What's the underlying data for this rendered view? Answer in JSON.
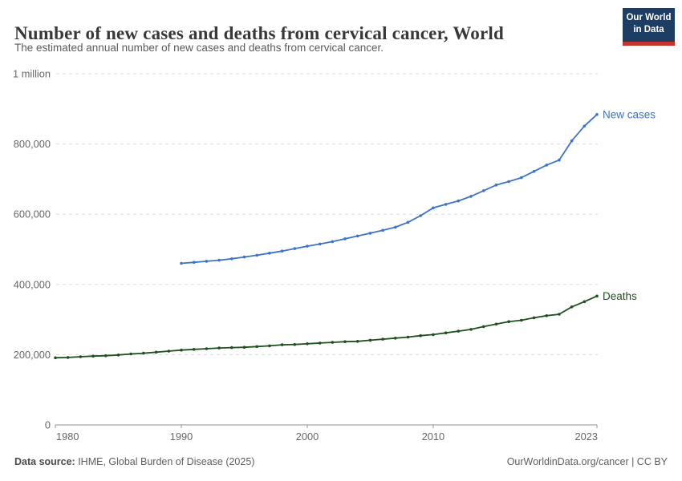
{
  "header": {
    "title": "Number of new cases and deaths from cervical cancer, World",
    "subtitle": "The estimated annual number of new cases and deaths from cervical cancer.",
    "logo": {
      "line1": "Our World",
      "line2": "in Data",
      "bg_color": "#1d3d63",
      "bar_color": "#c5352b"
    }
  },
  "footer": {
    "source_label": "Data source:",
    "source_text": " IHME, Global Burden of Disease (2025)",
    "credit": "OurWorldinData.org/cancer | CC BY"
  },
  "chart_data": {
    "type": "line",
    "title": "Number of new cases and deaths from cervical cancer, World",
    "subtitle": "The estimated annual number of new cases and deaths from cervical cancer.",
    "xlabel": "",
    "ylabel": "",
    "xlim": [
      1980,
      2023
    ],
    "ylim": [
      0,
      1000000
    ],
    "grid": "horizontal-dashed",
    "legend_position": "line-end-labels",
    "x_ticks": [
      {
        "value": 1980,
        "label": "1980"
      },
      {
        "value": 1990,
        "label": "1990"
      },
      {
        "value": 2000,
        "label": "2000"
      },
      {
        "value": 2010,
        "label": "2010"
      },
      {
        "value": 2023,
        "label": "2023"
      }
    ],
    "y_ticks": [
      {
        "value": 0,
        "label": "0"
      },
      {
        "value": 200000,
        "label": "200,000"
      },
      {
        "value": 400000,
        "label": "400,000"
      },
      {
        "value": 600000,
        "label": "600,000"
      },
      {
        "value": 800000,
        "label": "800,000"
      },
      {
        "value": 1000000,
        "label": "1 million"
      }
    ],
    "series": [
      {
        "id": "new-cases",
        "name": "New cases",
        "color": "#3d73c8",
        "x": [
          1990,
          1991,
          1992,
          1993,
          1994,
          1995,
          1996,
          1997,
          1998,
          1999,
          2000,
          2001,
          2002,
          2003,
          2004,
          2005,
          2006,
          2007,
          2008,
          2009,
          2010,
          2011,
          2012,
          2013,
          2014,
          2015,
          2016,
          2017,
          2018,
          2019,
          2020,
          2021,
          2022,
          2023
        ],
        "values": [
          460000,
          463000,
          466000,
          469000,
          473000,
          478000,
          483000,
          489000,
          495000,
          502000,
          509000,
          515000,
          522000,
          530000,
          538000,
          546000,
          554000,
          563000,
          577000,
          596000,
          618000,
          628000,
          638000,
          651000,
          667000,
          683000,
          693000,
          704000,
          722000,
          740000,
          754000,
          809000,
          851000,
          884000
        ]
      },
      {
        "id": "deaths",
        "name": "Deaths",
        "color": "#1e511e",
        "x": [
          1980,
          1981,
          1982,
          1983,
          1984,
          1985,
          1986,
          1987,
          1988,
          1989,
          1990,
          1991,
          1992,
          1993,
          1994,
          1995,
          1996,
          1997,
          1998,
          1999,
          2000,
          2001,
          2002,
          2003,
          2004,
          2005,
          2006,
          2007,
          2008,
          2009,
          2010,
          2011,
          2012,
          2013,
          2014,
          2015,
          2016,
          2017,
          2018,
          2019,
          2020,
          2021,
          2022,
          2023
        ],
        "values": [
          191000,
          192000,
          194000,
          196000,
          197000,
          199000,
          202000,
          204000,
          207000,
          210000,
          213000,
          215000,
          217000,
          219000,
          220000,
          221000,
          223000,
          225000,
          228000,
          229000,
          231000,
          233000,
          235000,
          237000,
          238000,
          241000,
          244000,
          247000,
          250000,
          254000,
          257000,
          262000,
          267000,
          272000,
          280000,
          287000,
          294000,
          298000,
          305000,
          311000,
          315000,
          336000,
          351000,
          367000
        ]
      }
    ]
  }
}
